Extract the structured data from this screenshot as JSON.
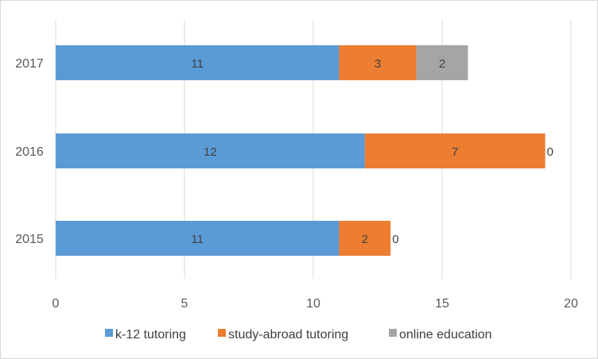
{
  "chart_data": {
    "type": "bar",
    "orientation": "horizontal",
    "stacked": true,
    "categories": [
      "2015",
      "2016",
      "2017"
    ],
    "series": [
      {
        "name": "k-12 tutoring",
        "values": [
          11,
          12,
          11
        ],
        "color": "#5B9BD5"
      },
      {
        "name": "study-abroad tutoring",
        "values": [
          2,
          7,
          3
        ],
        "color": "#ED7D31"
      },
      {
        "name": "online education",
        "values": [
          0,
          0,
          2
        ],
        "color": "#A5A5A5"
      }
    ],
    "xlim": [
      0,
      20
    ],
    "xticks": [
      0,
      5,
      10,
      15,
      20
    ],
    "grid": "vertical",
    "legend_position": "bottom",
    "title": "",
    "xlabel": "",
    "ylabel": ""
  }
}
